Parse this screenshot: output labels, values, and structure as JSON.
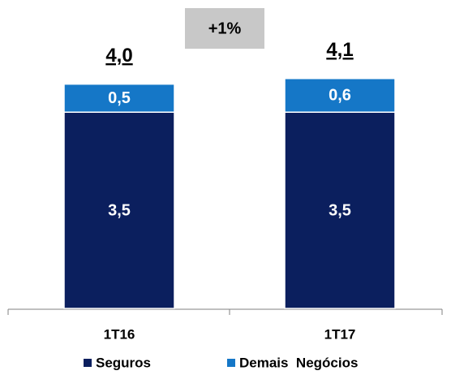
{
  "chart_data": {
    "type": "stacked_bar",
    "categories": [
      "1T16",
      "1T17"
    ],
    "series": [
      {
        "name": "Seguros",
        "color": "#0b1f5e",
        "values": [
          3.5,
          3.5
        ],
        "value_labels": [
          "3,5",
          "3,5"
        ]
      },
      {
        "name": "Demais  Negócios",
        "color": "#1577c7",
        "values": [
          0.5,
          0.6
        ],
        "value_labels": [
          "0,5",
          "0,6"
        ]
      }
    ],
    "totals": [
      4.0,
      4.1
    ],
    "total_labels": [
      "4,0",
      "4,1"
    ],
    "annotation": "+1%",
    "ylim": [
      0,
      5.5
    ]
  }
}
